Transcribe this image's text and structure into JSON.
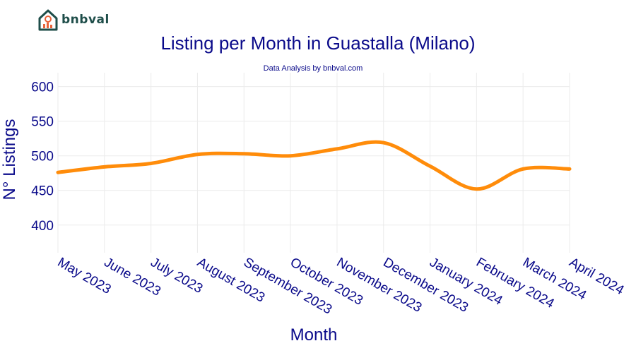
{
  "logo": {
    "text": "bnbval"
  },
  "chart_data": {
    "type": "line",
    "title": "Listing per Month in Guastalla (Milano)",
    "subtitle": "Data Analysis by bnbval.com",
    "xlabel": "Month",
    "ylabel": "N° Listings",
    "categories": [
      "May 2023",
      "June 2023",
      "July 2023",
      "August 2023",
      "September 2023",
      "October 2023",
      "November 2023",
      "December 2023",
      "January 2024",
      "February 2024",
      "March 2024",
      "April 2024"
    ],
    "series": [
      {
        "values": [
          476,
          484,
          489,
          502,
          503,
          500,
          510,
          519,
          485,
          452,
          481,
          481
        ]
      }
    ],
    "ylim": [
      360,
      620
    ],
    "yticks": [
      400,
      450,
      500,
      550,
      600
    ],
    "grid": true,
    "line_color": "#ff8c0a"
  }
}
